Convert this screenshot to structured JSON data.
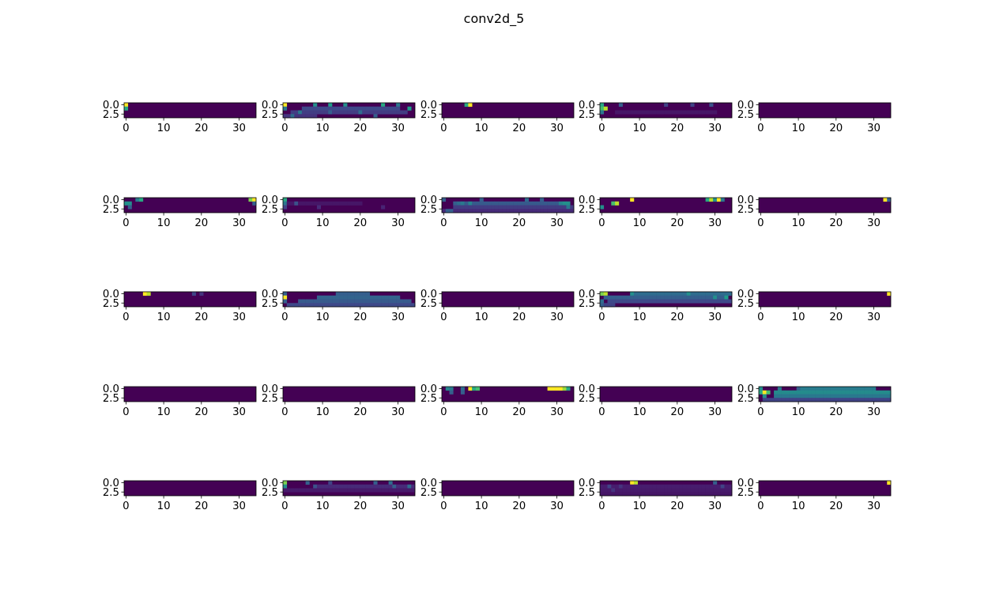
{
  "chart_data": {
    "type": "heatmap",
    "title": "conv2d_5",
    "layout": {
      "rows": 5,
      "cols": 5
    },
    "colormap": "viridis",
    "value_range": [
      0,
      1
    ],
    "grid": false,
    "map_shape": {
      "rows": 4,
      "cols": 35
    },
    "xlim": [
      -0.5,
      34.5
    ],
    "ylim": [
      3.5,
      -0.5
    ],
    "xticks": [
      0,
      10,
      20,
      30
    ],
    "xtick_labels": [
      "0",
      "10",
      "20",
      "30"
    ],
    "yticks": [
      0.0,
      2.5
    ],
    "ytick_labels": [
      "0.0",
      "2.5"
    ],
    "panels": [
      {
        "peaks": [
          [
            0,
            0,
            1.0
          ],
          [
            1,
            0,
            0.6
          ]
        ]
      },
      {
        "peaks": [
          [
            0,
            0,
            1.0
          ],
          [
            1,
            0,
            0.4
          ],
          [
            0,
            8,
            0.5
          ],
          [
            0,
            12,
            0.55
          ],
          [
            0,
            16,
            0.5
          ],
          [
            0,
            26,
            0.6
          ],
          [
            0,
            30,
            0.4
          ],
          [
            1,
            33,
            0.55
          ],
          [
            2,
            4,
            0.4
          ],
          [
            2,
            12,
            0.3
          ],
          [
            2,
            20,
            0.35
          ],
          [
            3,
            2,
            0.35
          ],
          [
            3,
            24,
            0.3
          ]
        ],
        "bands": [
          [
            1,
            5,
            30,
            0.22
          ],
          [
            2,
            2,
            32,
            0.18
          ],
          [
            3,
            0,
            8,
            0.15
          ]
        ]
      },
      {
        "peaks": [
          [
            0,
            6,
            0.6
          ],
          [
            0,
            7,
            1.0
          ]
        ]
      },
      {
        "peaks": [
          [
            0,
            0,
            0.6
          ],
          [
            1,
            0,
            0.7
          ],
          [
            1,
            1,
            0.9
          ],
          [
            2,
            0,
            0.4
          ],
          [
            0,
            5,
            0.3
          ],
          [
            0,
            17,
            0.2
          ],
          [
            0,
            24,
            0.2
          ],
          [
            0,
            29,
            0.25
          ]
        ],
        "bands": [
          [
            2,
            4,
            30,
            0.06
          ]
        ]
      },
      {
        "peaks": []
      },
      {
        "peaks": [
          [
            0,
            3,
            0.4
          ],
          [
            0,
            4,
            0.6
          ],
          [
            1,
            0,
            0.5
          ],
          [
            1,
            1,
            0.5
          ],
          [
            2,
            1,
            0.3
          ],
          [
            0,
            33,
            0.8
          ],
          [
            0,
            34,
            1.0
          ],
          [
            1,
            34,
            0.3
          ]
        ]
      },
      {
        "peaks": [
          [
            0,
            0,
            0.6
          ],
          [
            1,
            0,
            0.4
          ],
          [
            1,
            3,
            0.25
          ],
          [
            2,
            0,
            0.2
          ],
          [
            2,
            9,
            0.12
          ],
          [
            2,
            26,
            0.1
          ]
        ],
        "bands": [
          [
            1,
            1,
            20,
            0.06
          ]
        ]
      },
      {
        "peaks": [
          [
            0,
            0,
            0.3
          ],
          [
            1,
            3,
            0.3
          ],
          [
            1,
            4,
            0.35
          ],
          [
            1,
            5,
            0.4
          ],
          [
            0,
            10,
            0.3
          ],
          [
            1,
            7,
            0.45
          ],
          [
            0,
            22,
            0.35
          ],
          [
            0,
            26,
            0.3
          ],
          [
            1,
            31,
            0.45
          ],
          [
            1,
            32,
            0.5
          ],
          [
            1,
            33,
            0.5
          ],
          [
            2,
            33,
            0.4
          ],
          [
            3,
            1,
            0.3
          ],
          [
            3,
            2,
            0.3
          ]
        ],
        "bands": [
          [
            1,
            6,
            32,
            0.28
          ],
          [
            2,
            3,
            34,
            0.18
          ],
          [
            3,
            0,
            34,
            0.12
          ]
        ]
      },
      {
        "peaks": [
          [
            0,
            8,
            1.0
          ],
          [
            1,
            3,
            0.7
          ],
          [
            1,
            4,
            0.9
          ],
          [
            2,
            0,
            0.5
          ],
          [
            0,
            28,
            0.6
          ],
          [
            0,
            29,
            0.9
          ],
          [
            0,
            30,
            0.5
          ],
          [
            0,
            31,
            1.0
          ],
          [
            0,
            32,
            0.4
          ]
        ]
      },
      {
        "peaks": [
          [
            0,
            33,
            1.0
          ],
          [
            0,
            34,
            0.3
          ]
        ]
      },
      {
        "peaks": [
          [
            0,
            5,
            1.0
          ],
          [
            0,
            6,
            0.9
          ],
          [
            0,
            18,
            0.2
          ],
          [
            0,
            20,
            0.15
          ]
        ]
      },
      {
        "peaks": [
          [
            0,
            0,
            0.3
          ],
          [
            1,
            0,
            1.0
          ],
          [
            2,
            0,
            0.3
          ]
        ],
        "bands": [
          [
            0,
            14,
            22,
            0.3
          ],
          [
            1,
            9,
            30,
            0.32
          ],
          [
            2,
            4,
            33,
            0.28
          ],
          [
            3,
            1,
            34,
            0.22
          ]
        ]
      },
      {
        "peaks": []
      },
      {
        "peaks": [
          [
            0,
            0,
            0.8
          ],
          [
            0,
            1,
            0.9
          ],
          [
            0,
            8,
            0.5
          ],
          [
            0,
            23,
            0.5
          ],
          [
            1,
            30,
            0.5
          ],
          [
            1,
            33,
            0.55
          ],
          [
            2,
            0,
            0.35
          ],
          [
            3,
            0,
            0.3
          ]
        ],
        "bands": [
          [
            0,
            9,
            34,
            0.35
          ],
          [
            1,
            1,
            32,
            0.3
          ],
          [
            2,
            2,
            34,
            0.22
          ],
          [
            3,
            1,
            3,
            0.2
          ]
        ]
      },
      {
        "peaks": [
          [
            0,
            34,
            1.0
          ]
        ]
      },
      {
        "peaks": []
      },
      {
        "peaks": []
      },
      {
        "peaks": [
          [
            0,
            1,
            0.45
          ],
          [
            0,
            2,
            0.4
          ],
          [
            0,
            5,
            0.35
          ],
          [
            0,
            7,
            1.0
          ],
          [
            0,
            8,
            0.6
          ],
          [
            0,
            9,
            0.7
          ],
          [
            0,
            28,
            1.0
          ],
          [
            0,
            29,
            1.0
          ],
          [
            0,
            30,
            1.0
          ],
          [
            0,
            31,
            1.0
          ],
          [
            0,
            32,
            0.85
          ],
          [
            0,
            33,
            0.6
          ],
          [
            1,
            2,
            0.3
          ],
          [
            1,
            5,
            0.3
          ]
        ]
      },
      {
        "peaks": []
      },
      {
        "peaks": [
          [
            0,
            0,
            0.5
          ],
          [
            1,
            0,
            0.6
          ],
          [
            1,
            1,
            1.0
          ],
          [
            1,
            2,
            0.7
          ],
          [
            2,
            1,
            0.5
          ],
          [
            0,
            5,
            0.4
          ],
          [
            0,
            10,
            0.3
          ]
        ],
        "bands": [
          [
            0,
            10,
            30,
            0.42
          ],
          [
            1,
            4,
            34,
            0.48
          ],
          [
            2,
            4,
            34,
            0.4
          ],
          [
            3,
            1,
            34,
            0.2
          ]
        ]
      },
      {
        "peaks": []
      },
      {
        "peaks": [
          [
            0,
            0,
            0.8
          ],
          [
            1,
            0,
            0.5
          ],
          [
            0,
            6,
            0.3
          ],
          [
            1,
            8,
            0.25
          ],
          [
            0,
            12,
            0.2
          ],
          [
            0,
            24,
            0.3
          ],
          [
            0,
            28,
            0.35
          ],
          [
            1,
            29,
            0.3
          ],
          [
            1,
            33,
            0.35
          ]
        ],
        "bands": [
          [
            1,
            9,
            34,
            0.12
          ],
          [
            2,
            0,
            34,
            0.07
          ]
        ]
      },
      {
        "peaks": []
      },
      {
        "peaks": [
          [
            0,
            8,
            1.0
          ],
          [
            0,
            9,
            0.9
          ],
          [
            1,
            2,
            0.2
          ],
          [
            1,
            5,
            0.15
          ],
          [
            2,
            3,
            0.15
          ],
          [
            0,
            30,
            0.3
          ],
          [
            1,
            32,
            0.2
          ]
        ],
        "bands": [
          [
            1,
            0,
            34,
            0.08
          ],
          [
            2,
            0,
            34,
            0.07
          ],
          [
            3,
            0,
            34,
            0.06
          ]
        ]
      },
      {
        "peaks": [
          [
            0,
            34,
            1.0
          ]
        ]
      }
    ]
  }
}
